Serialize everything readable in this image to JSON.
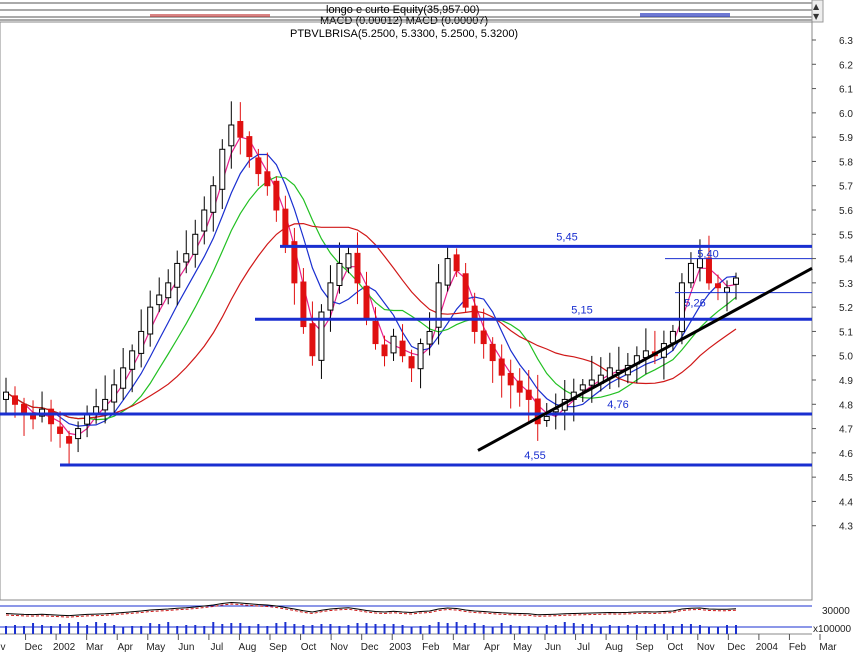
{
  "header": {
    "line1": "longo e curto Equity(35,957.00)",
    "line2": "MACD (0.00012) MACD (0.00007)",
    "line3": "PTBVLBRISA(5.2500, 5.3300, 5.2500, 5.3200)"
  },
  "chart_data": {
    "type": "candlestick",
    "title": "PTBVLBRISA(5.2500, 5.3300, 5.2500, 5.3200)",
    "ylim": [
      4.2,
      6.35
    ],
    "yticks": [
      4.3,
      4.4,
      4.5,
      4.6,
      4.7,
      4.8,
      4.9,
      5.0,
      5.1,
      5.2,
      5.3,
      5.4,
      5.5,
      5.6,
      5.7,
      5.8,
      5.9,
      6.0,
      6.1,
      6.2,
      6.3
    ],
    "ytick_labels": [
      "4.3",
      "4.4",
      "4.5",
      "4.6",
      "4.7",
      "4.8",
      "4.9",
      "5.0",
      "5.1",
      "5.2",
      "5.3",
      "5.4",
      "5.5",
      "5.6",
      "5.7",
      "5.8",
      "5.9",
      "6.0",
      "6.1",
      "6.2",
      "6.3"
    ],
    "x_labels": [
      "v",
      "Dec",
      "2002",
      "Mar",
      "Apr",
      "May",
      "Jun",
      "Jul",
      "Aug",
      "Sep",
      "Oct",
      "Nov",
      "Dec",
      "2003",
      "Feb",
      "Mar",
      "Apr",
      "May",
      "Jun",
      "Jul",
      "Aug",
      "Sep",
      "Oct",
      "Nov",
      "Dec",
      "2004",
      "Feb",
      "Mar"
    ],
    "last_ohlc": {
      "open": 5.25,
      "high": 5.33,
      "low": 5.25,
      "close": 5.32
    },
    "close_series": [
      4.85,
      4.8,
      4.76,
      4.74,
      4.78,
      4.72,
      4.68,
      4.64,
      4.7,
      4.76,
      4.79,
      4.82,
      4.88,
      4.95,
      5.02,
      5.1,
      5.2,
      5.25,
      5.3,
      5.38,
      5.42,
      5.5,
      5.6,
      5.7,
      5.85,
      5.95,
      5.9,
      5.82,
      5.75,
      5.7,
      5.6,
      5.45,
      5.3,
      5.12,
      5.0,
      5.18,
      5.3,
      5.38,
      5.42,
      5.3,
      5.15,
      5.05,
      5.0,
      5.08,
      5.0,
      4.95,
      5.05,
      5.1,
      5.3,
      5.4,
      5.35,
      5.2,
      5.1,
      5.05,
      4.98,
      4.92,
      4.88,
      4.85,
      4.82,
      4.72,
      4.75,
      4.78,
      4.82,
      4.85,
      4.88,
      4.9,
      4.92,
      4.95,
      4.94,
      4.96,
      5.0,
      5.02,
      5.0,
      5.05,
      5.1,
      5.3,
      5.38,
      5.4,
      5.3,
      5.28,
      5.28,
      5.32
    ],
    "series": [
      {
        "name": "",
        "color": "#e8208c",
        "kind": "ma-fast"
      },
      {
        "name": "",
        "color": "#1a2fd0",
        "kind": "ma-mid"
      },
      {
        "name": "",
        "color": "#22c022",
        "kind": "ma-slow"
      },
      {
        "name": "",
        "color": "#d01818",
        "kind": "ma-long"
      }
    ],
    "levels": [
      {
        "value": 5.45,
        "label": "5,45"
      },
      {
        "value": 5.15,
        "label": "5,15"
      },
      {
        "value": 4.76,
        "label": "4,76"
      },
      {
        "value": 4.55,
        "label": "4,55"
      }
    ],
    "thin_levels": [
      {
        "value": 5.4,
        "label": "5,40"
      },
      {
        "value": 5.26,
        "label": "5,26"
      }
    ],
    "trendline": {
      "from": {
        "bar": 0.589,
        "value": 4.61
      },
      "to": {
        "bar": 1.0,
        "value": 5.36
      }
    },
    "lower_panel": {
      "ytick_labels": [
        "30000",
        "x1000",
        "00"
      ]
    },
    "colors": {
      "up": "#000000",
      "down": "#e01010",
      "level": "#1a2fd0",
      "trend": "#000000",
      "grid": "#c8c8c8"
    }
  }
}
